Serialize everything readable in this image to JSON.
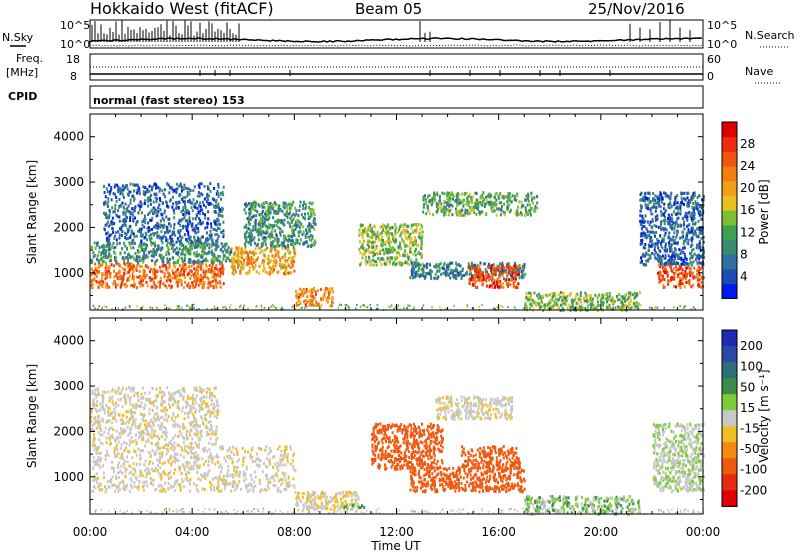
{
  "header": {
    "station": "Hokkaido West (fitACF)",
    "beam": "Beam 05",
    "date": "25/Nov/2016"
  },
  "top_strips": {
    "nsky_label": "N.Sky",
    "nsearch_label": "N.Search",
    "noise_ticks": [
      "10^5",
      "10^0"
    ],
    "freq_label_1": "Freq.",
    "freq_label_2": "[MHz]",
    "freq_ticks": [
      "18",
      "8"
    ],
    "nave_label": "Nave",
    "nave_ticks": [
      "60",
      "0"
    ],
    "cpid_label": "CPID",
    "cpid_text": "normal (fast stereo) 153"
  },
  "time_axis": {
    "label": "Time UT",
    "ticks": [
      "00:00",
      "04:00",
      "08:00",
      "12:00",
      "16:00",
      "20:00",
      "00:00"
    ]
  },
  "colors": {
    "power": [
      "#0018f0",
      "#1e4ab4",
      "#2f6e9e",
      "#3a8a72",
      "#3fa050",
      "#7cc030",
      "#e8c020",
      "#f0a018",
      "#f07e10",
      "#f05410",
      "#f02a10",
      "#e00000"
    ],
    "velocity": [
      "#1e2ab4",
      "#2a4aa8",
      "#2d6e7a",
      "#3a8c4a",
      "#7ccc3a",
      "#c8c8c8",
      "#f0c020",
      "#f08a10",
      "#f05a10",
      "#e82a10",
      "#e00000"
    ]
  },
  "chart_data": [
    {
      "type": "heatmap",
      "title": "Power",
      "ylabel": "Slant Range [km]",
      "xlabel": "",
      "x_range_hours": [
        0,
        24
      ],
      "ylim": [
        180,
        4500
      ],
      "y_ticks": [
        "4000",
        "3000",
        "2000",
        "1000"
      ],
      "colorbar": {
        "label": "Power [dB]",
        "ticks": [
          "28",
          "24",
          "20",
          "16",
          "12",
          "8",
          "4"
        ],
        "range": [
          0,
          32
        ]
      },
      "echo_regions": [
        {
          "t0": 0.0,
          "t1": 5.2,
          "r0": 700,
          "r1": 1250,
          "value": 24
        },
        {
          "t0": 0.0,
          "t1": 5.5,
          "r0": 1250,
          "r1": 1700,
          "value": 10
        },
        {
          "t0": 0.5,
          "t1": 5.2,
          "r0": 1700,
          "r1": 3000,
          "value": 6
        },
        {
          "t0": 5.5,
          "t1": 8.0,
          "r0": 1000,
          "r1": 1600,
          "value": 20
        },
        {
          "t0": 6.0,
          "t1": 8.8,
          "r0": 1600,
          "r1": 2600,
          "value": 10
        },
        {
          "t0": 8.0,
          "t1": 9.5,
          "r0": 300,
          "r1": 700,
          "value": 22
        },
        {
          "t0": 10.5,
          "t1": 13.0,
          "r0": 1200,
          "r1": 2100,
          "value": 14
        },
        {
          "t0": 12.5,
          "t1": 17.0,
          "r0": 900,
          "r1": 1250,
          "value": 8
        },
        {
          "t0": 14.8,
          "t1": 16.8,
          "r0": 700,
          "r1": 1200,
          "value": 26
        },
        {
          "t0": 13.0,
          "t1": 17.5,
          "r0": 2300,
          "r1": 2800,
          "value": 12
        },
        {
          "t0": 17.0,
          "t1": 21.5,
          "r0": 200,
          "r1": 600,
          "value": 14
        },
        {
          "t0": 22.2,
          "t1": 24.0,
          "r0": 700,
          "r1": 1200,
          "value": 26
        },
        {
          "t0": 21.5,
          "t1": 24.0,
          "r0": 1200,
          "r1": 2800,
          "value": 6
        }
      ]
    },
    {
      "type": "heatmap",
      "title": "Velocity",
      "ylabel": "Slant Range [km]",
      "xlabel": "Time UT",
      "x_range_hours": [
        0,
        24
      ],
      "ylim": [
        180,
        4500
      ],
      "y_ticks": [
        "4000",
        "3000",
        "2000",
        "1000"
      ],
      "colorbar": {
        "label": "Velocity [m s⁻¹]",
        "ticks": [
          "200",
          "100",
          "50",
          "15",
          "-15",
          "-50",
          "-100",
          "-200"
        ]
      },
      "echo_regions": [
        {
          "t0": 0.0,
          "t1": 8.0,
          "r0": 700,
          "r1": 1700,
          "value": -5
        },
        {
          "t0": 0.0,
          "t1": 5.0,
          "r0": 1700,
          "r1": 3000,
          "value": -5
        },
        {
          "t0": 8.0,
          "t1": 10.5,
          "r0": 300,
          "r1": 700,
          "value": -10
        },
        {
          "t0": 9.6,
          "t1": 10.8,
          "r0": 350,
          "r1": 420,
          "value": 30
        },
        {
          "t0": 11.0,
          "t1": 13.8,
          "r0": 1200,
          "r1": 2200,
          "value": -80
        },
        {
          "t0": 12.5,
          "t1": 17.0,
          "r0": 700,
          "r1": 1250,
          "value": -70
        },
        {
          "t0": 14.5,
          "t1": 16.8,
          "r0": 1200,
          "r1": 1700,
          "value": -80
        },
        {
          "t0": 13.5,
          "t1": 16.5,
          "r0": 2300,
          "r1": 2800,
          "value": -5
        },
        {
          "t0": 17.0,
          "t1": 21.5,
          "r0": 200,
          "r1": 600,
          "value": 20
        },
        {
          "t0": 22.0,
          "t1": 24.0,
          "r0": 700,
          "r1": 2200,
          "value": 10
        }
      ]
    }
  ]
}
